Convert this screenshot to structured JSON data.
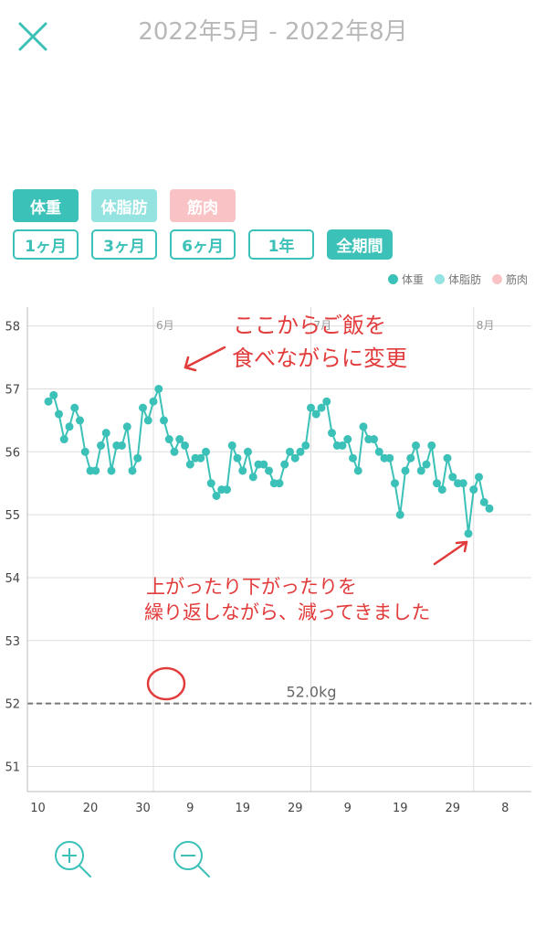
{
  "header": {
    "title": "2022年5月 - 2022年8月"
  },
  "metrics": [
    {
      "label": "体重",
      "color": "#3cc1b8"
    },
    {
      "label": "体脂肪",
      "color": "#94e3e0"
    },
    {
      "label": "筋肉",
      "color": "#f9c3c6"
    }
  ],
  "ranges": [
    {
      "label": "1ヶ月",
      "active": false
    },
    {
      "label": "3ヶ月",
      "active": false
    },
    {
      "label": "6ヶ月",
      "active": false
    },
    {
      "label": "1年",
      "active": false
    },
    {
      "label": "全期間",
      "active": true
    }
  ],
  "legend": [
    {
      "label": "体重",
      "color": "#3cc1b8"
    },
    {
      "label": "体脂肪",
      "color": "#94e3e0"
    },
    {
      "label": "筋肉",
      "color": "#f9c3c6"
    }
  ],
  "annotations": {
    "top_line1": "ここからご飯を",
    "top_line2": "食べながらに変更",
    "bottom_line1": "上がったり下がったりを",
    "bottom_line2": "繰り返しながら、減ってきました",
    "color": "#e23b3b"
  },
  "chart_data": {
    "type": "line",
    "ylim": [
      50.6,
      58.3
    ],
    "xlim": [
      8,
      104
    ],
    "yticks": [
      51,
      52,
      53,
      54,
      55,
      56,
      57,
      58
    ],
    "xticks": [
      {
        "x": 10,
        "label": "10"
      },
      {
        "x": 20,
        "label": "20"
      },
      {
        "x": 30,
        "label": "30"
      },
      {
        "x": 39,
        "label": "9"
      },
      {
        "x": 49,
        "label": "19"
      },
      {
        "x": 59,
        "label": "29"
      },
      {
        "x": 69,
        "label": "9"
      },
      {
        "x": 79,
        "label": "19"
      },
      {
        "x": 89,
        "label": "29"
      },
      {
        "x": 99,
        "label": "8"
      }
    ],
    "month_lines": [
      {
        "x": 32,
        "label": "6月"
      },
      {
        "x": 62,
        "label": "7月"
      },
      {
        "x": 93,
        "label": "8月"
      }
    ],
    "target": {
      "value": 52.0,
      "label": "52.0kg"
    },
    "series": [
      {
        "color": "#3cc1b8",
        "points": [
          [
            12,
            56.8
          ],
          [
            13,
            56.9
          ],
          [
            14,
            56.6
          ],
          [
            15,
            56.2
          ],
          [
            16,
            56.4
          ],
          [
            17,
            56.7
          ],
          [
            18,
            56.5
          ],
          [
            19,
            56.0
          ],
          [
            20,
            55.7
          ],
          [
            21,
            55.7
          ],
          [
            22,
            56.1
          ],
          [
            23,
            56.3
          ],
          [
            24,
            55.7
          ],
          [
            25,
            56.1
          ],
          [
            26,
            56.1
          ],
          [
            27,
            56.4
          ],
          [
            28,
            55.7
          ],
          [
            29,
            55.9
          ],
          [
            30,
            56.7
          ],
          [
            31,
            56.5
          ],
          [
            32,
            56.8
          ],
          [
            33,
            57.0
          ],
          [
            34,
            56.5
          ],
          [
            35,
            56.2
          ],
          [
            36,
            56.0
          ],
          [
            37,
            56.2
          ],
          [
            38,
            56.1
          ],
          [
            39,
            55.8
          ],
          [
            40,
            55.9
          ],
          [
            41,
            55.9
          ],
          [
            42,
            56.0
          ],
          [
            43,
            55.5
          ],
          [
            44,
            55.3
          ],
          [
            45,
            55.4
          ],
          [
            46,
            55.4
          ],
          [
            47,
            56.1
          ],
          [
            48,
            55.9
          ],
          [
            49,
            55.7
          ],
          [
            50,
            56.0
          ],
          [
            51,
            55.6
          ],
          [
            52,
            55.8
          ],
          [
            53,
            55.8
          ],
          [
            54,
            55.7
          ],
          [
            55,
            55.5
          ],
          [
            56,
            55.5
          ],
          [
            57,
            55.8
          ],
          [
            58,
            56.0
          ],
          [
            59,
            55.9
          ],
          [
            60,
            56.0
          ],
          [
            61,
            56.1
          ],
          [
            62,
            56.7
          ],
          [
            63,
            56.6
          ],
          [
            64,
            56.7
          ],
          [
            65,
            56.8
          ],
          [
            66,
            56.3
          ],
          [
            67,
            56.1
          ],
          [
            68,
            56.1
          ],
          [
            69,
            56.2
          ],
          [
            70,
            55.9
          ],
          [
            71,
            55.7
          ],
          [
            72,
            56.4
          ],
          [
            73,
            56.2
          ],
          [
            74,
            56.2
          ],
          [
            75,
            56.0
          ],
          [
            76,
            55.9
          ],
          [
            77,
            55.9
          ],
          [
            78,
            55.5
          ],
          [
            79,
            55.0
          ],
          [
            80,
            55.7
          ],
          [
            81,
            55.9
          ],
          [
            82,
            56.1
          ],
          [
            83,
            55.7
          ],
          [
            84,
            55.8
          ],
          [
            85,
            56.1
          ],
          [
            86,
            55.5
          ],
          [
            87,
            55.4
          ],
          [
            88,
            55.9
          ],
          [
            89,
            55.6
          ],
          [
            90,
            55.5
          ],
          [
            91,
            55.5
          ],
          [
            92,
            54.7
          ],
          [
            93,
            55.4
          ],
          [
            94,
            55.6
          ],
          [
            95,
            55.2
          ],
          [
            96,
            55.1
          ]
        ]
      }
    ]
  }
}
